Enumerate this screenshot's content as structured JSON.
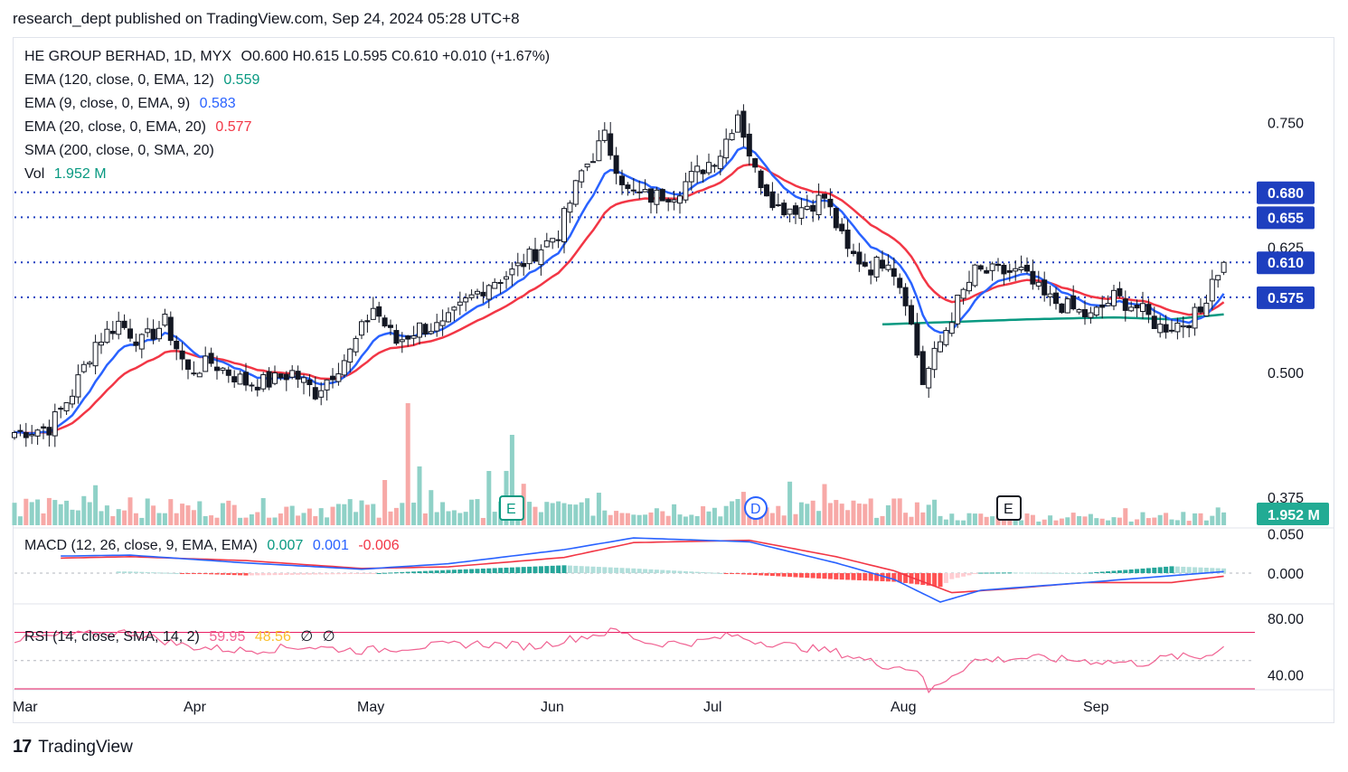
{
  "header": {
    "published": "research_dept published on TradingView.com, Sep 24, 2024 05:28 UTC+8"
  },
  "legend": {
    "symbol": "HE GROUP BERHAD, 1D, MYX",
    "ohlc": "O0.600  H0.615  L0.595  C0.610  +0.010 (+1.67%)",
    "ema120_label": "EMA (120, close, 0, EMA, 12)",
    "ema120_value": "0.559",
    "ema9_label": "EMA (9, close, 0, EMA, 9)",
    "ema9_value": "0.583",
    "ema20_label": "EMA (20, close, 0, EMA, 20)",
    "ema20_value": "0.577",
    "sma200_label": "SMA (200, close, 0, SMA, 20)",
    "vol_label": "Vol",
    "vol_value": "1.952 M",
    "macd_label": "MACD (12, 26, close, 9, EMA, EMA)",
    "macd_v1": "0.007",
    "macd_v2": "0.001",
    "macd_v3": "-0.006",
    "rsi_label": "RSI (14, close, SMA, 14, 2)",
    "rsi_v1": "59.95",
    "rsi_v2": "48.56",
    "rsi_v3": "∅",
    "rsi_v4": "∅"
  },
  "colors": {
    "up": "#ffffff",
    "down": "#131722",
    "vol_up": "#8fd1c7",
    "vol_down": "#f7a9a7",
    "ema9": "#2962ff",
    "ema20": "#f23645",
    "ema120": "#089981",
    "level": "#1e3fbf",
    "macd": "#2962ff",
    "signal": "#f23645",
    "rsi": "#f06292",
    "rsi_ma": "#fbc02d"
  },
  "chart_data": {
    "type": "candlestick",
    "price_axis_ticks": [
      "0.750",
      "0.625",
      "0.500",
      "0.375"
    ],
    "price_ylim": [
      0.33,
      0.8
    ],
    "level_lines": [
      {
        "value": 0.68,
        "label": "0.680"
      },
      {
        "value": 0.655,
        "label": "0.655"
      },
      {
        "value": 0.61,
        "label": "0.610"
      },
      {
        "value": 0.575,
        "label": "0.575"
      }
    ],
    "volume_badge": "1.952 M",
    "months": [
      "Mar",
      "Apr",
      "May",
      "Jun",
      "Jul",
      "Aug",
      "Sep"
    ],
    "events": [
      {
        "label": "E",
        "style": "green"
      },
      {
        "label": "D",
        "style": "blue"
      },
      {
        "label": "E",
        "style": "gray"
      }
    ],
    "close_anchors": [
      [
        0,
        0.44
      ],
      [
        6,
        0.445
      ],
      [
        10,
        0.48
      ],
      [
        14,
        0.53
      ],
      [
        18,
        0.55
      ],
      [
        22,
        0.53
      ],
      [
        26,
        0.55
      ],
      [
        30,
        0.5
      ],
      [
        34,
        0.51
      ],
      [
        40,
        0.49
      ],
      [
        44,
        0.49
      ],
      [
        48,
        0.5
      ],
      [
        52,
        0.48
      ],
      [
        58,
        0.52
      ],
      [
        62,
        0.565
      ],
      [
        66,
        0.53
      ],
      [
        70,
        0.545
      ],
      [
        74,
        0.545
      ],
      [
        78,
        0.57
      ],
      [
        82,
        0.59
      ],
      [
        86,
        0.6
      ],
      [
        90,
        0.62
      ],
      [
        94,
        0.64
      ],
      [
        98,
        0.7
      ],
      [
        102,
        0.735
      ],
      [
        106,
        0.68
      ],
      [
        110,
        0.675
      ],
      [
        114,
        0.68
      ],
      [
        118,
        0.7
      ],
      [
        122,
        0.72
      ],
      [
        125,
        0.76
      ],
      [
        128,
        0.7
      ],
      [
        132,
        0.665
      ],
      [
        136,
        0.665
      ],
      [
        140,
        0.675
      ],
      [
        144,
        0.62
      ],
      [
        148,
        0.605
      ],
      [
        151,
        0.615
      ],
      [
        154,
        0.575
      ],
      [
        157,
        0.49
      ],
      [
        160,
        0.53
      ],
      [
        163,
        0.57
      ],
      [
        166,
        0.6
      ],
      [
        170,
        0.6
      ],
      [
        174,
        0.6
      ],
      [
        178,
        0.575
      ],
      [
        182,
        0.565
      ],
      [
        186,
        0.555
      ],
      [
        190,
        0.575
      ],
      [
        194,
        0.565
      ],
      [
        198,
        0.545
      ],
      [
        202,
        0.55
      ],
      [
        205,
        0.56
      ],
      [
        207,
        0.595
      ],
      [
        209,
        0.61
      ]
    ],
    "macd_axis_ticks": [
      "0.050",
      "0.000"
    ],
    "macd_ylim": [
      -0.037,
      0.052
    ],
    "macd_anchors": [
      [
        0,
        0.021
      ],
      [
        20,
        0.023
      ],
      [
        40,
        0.013
      ],
      [
        60,
        0.005
      ],
      [
        75,
        0.012
      ],
      [
        95,
        0.03
      ],
      [
        107,
        0.045
      ],
      [
        127,
        0.04
      ],
      [
        142,
        0.013
      ],
      [
        152,
        -0.008
      ],
      [
        160,
        -0.037
      ],
      [
        167,
        -0.022
      ],
      [
        185,
        -0.012
      ],
      [
        209,
        0.002
      ]
    ],
    "signal_anchors": [
      [
        0,
        0.018
      ],
      [
        20,
        0.021
      ],
      [
        40,
        0.016
      ],
      [
        60,
        0.006
      ],
      [
        75,
        0.008
      ],
      [
        95,
        0.02
      ],
      [
        107,
        0.039
      ],
      [
        127,
        0.042
      ],
      [
        142,
        0.021
      ],
      [
        152,
        0.003
      ],
      [
        162,
        -0.025
      ],
      [
        172,
        -0.02
      ],
      [
        185,
        -0.012
      ],
      [
        200,
        -0.012
      ],
      [
        209,
        -0.004
      ]
    ],
    "rsi_axis_ticks": [
      "80.00",
      "40.00"
    ],
    "rsi_ylim": [
      30,
      85
    ],
    "rsi_bands": [
      70,
      50,
      30
    ],
    "rsi_anchors": [
      [
        0,
        65
      ],
      [
        10,
        68
      ],
      [
        20,
        70
      ],
      [
        30,
        60
      ],
      [
        40,
        57
      ],
      [
        50,
        60
      ],
      [
        60,
        57
      ],
      [
        70,
        60
      ],
      [
        80,
        62
      ],
      [
        90,
        60
      ],
      [
        97,
        66
      ],
      [
        104,
        71
      ],
      [
        110,
        62
      ],
      [
        118,
        63
      ],
      [
        124,
        68
      ],
      [
        128,
        64
      ],
      [
        135,
        60
      ],
      [
        142,
        56
      ],
      [
        150,
        47
      ],
      [
        156,
        44
      ],
      [
        158,
        28
      ],
      [
        162,
        40
      ],
      [
        166,
        50
      ],
      [
        175,
        52
      ],
      [
        185,
        50
      ],
      [
        195,
        48
      ],
      [
        200,
        53
      ],
      [
        205,
        52
      ],
      [
        209,
        59.95
      ]
    ]
  }
}
